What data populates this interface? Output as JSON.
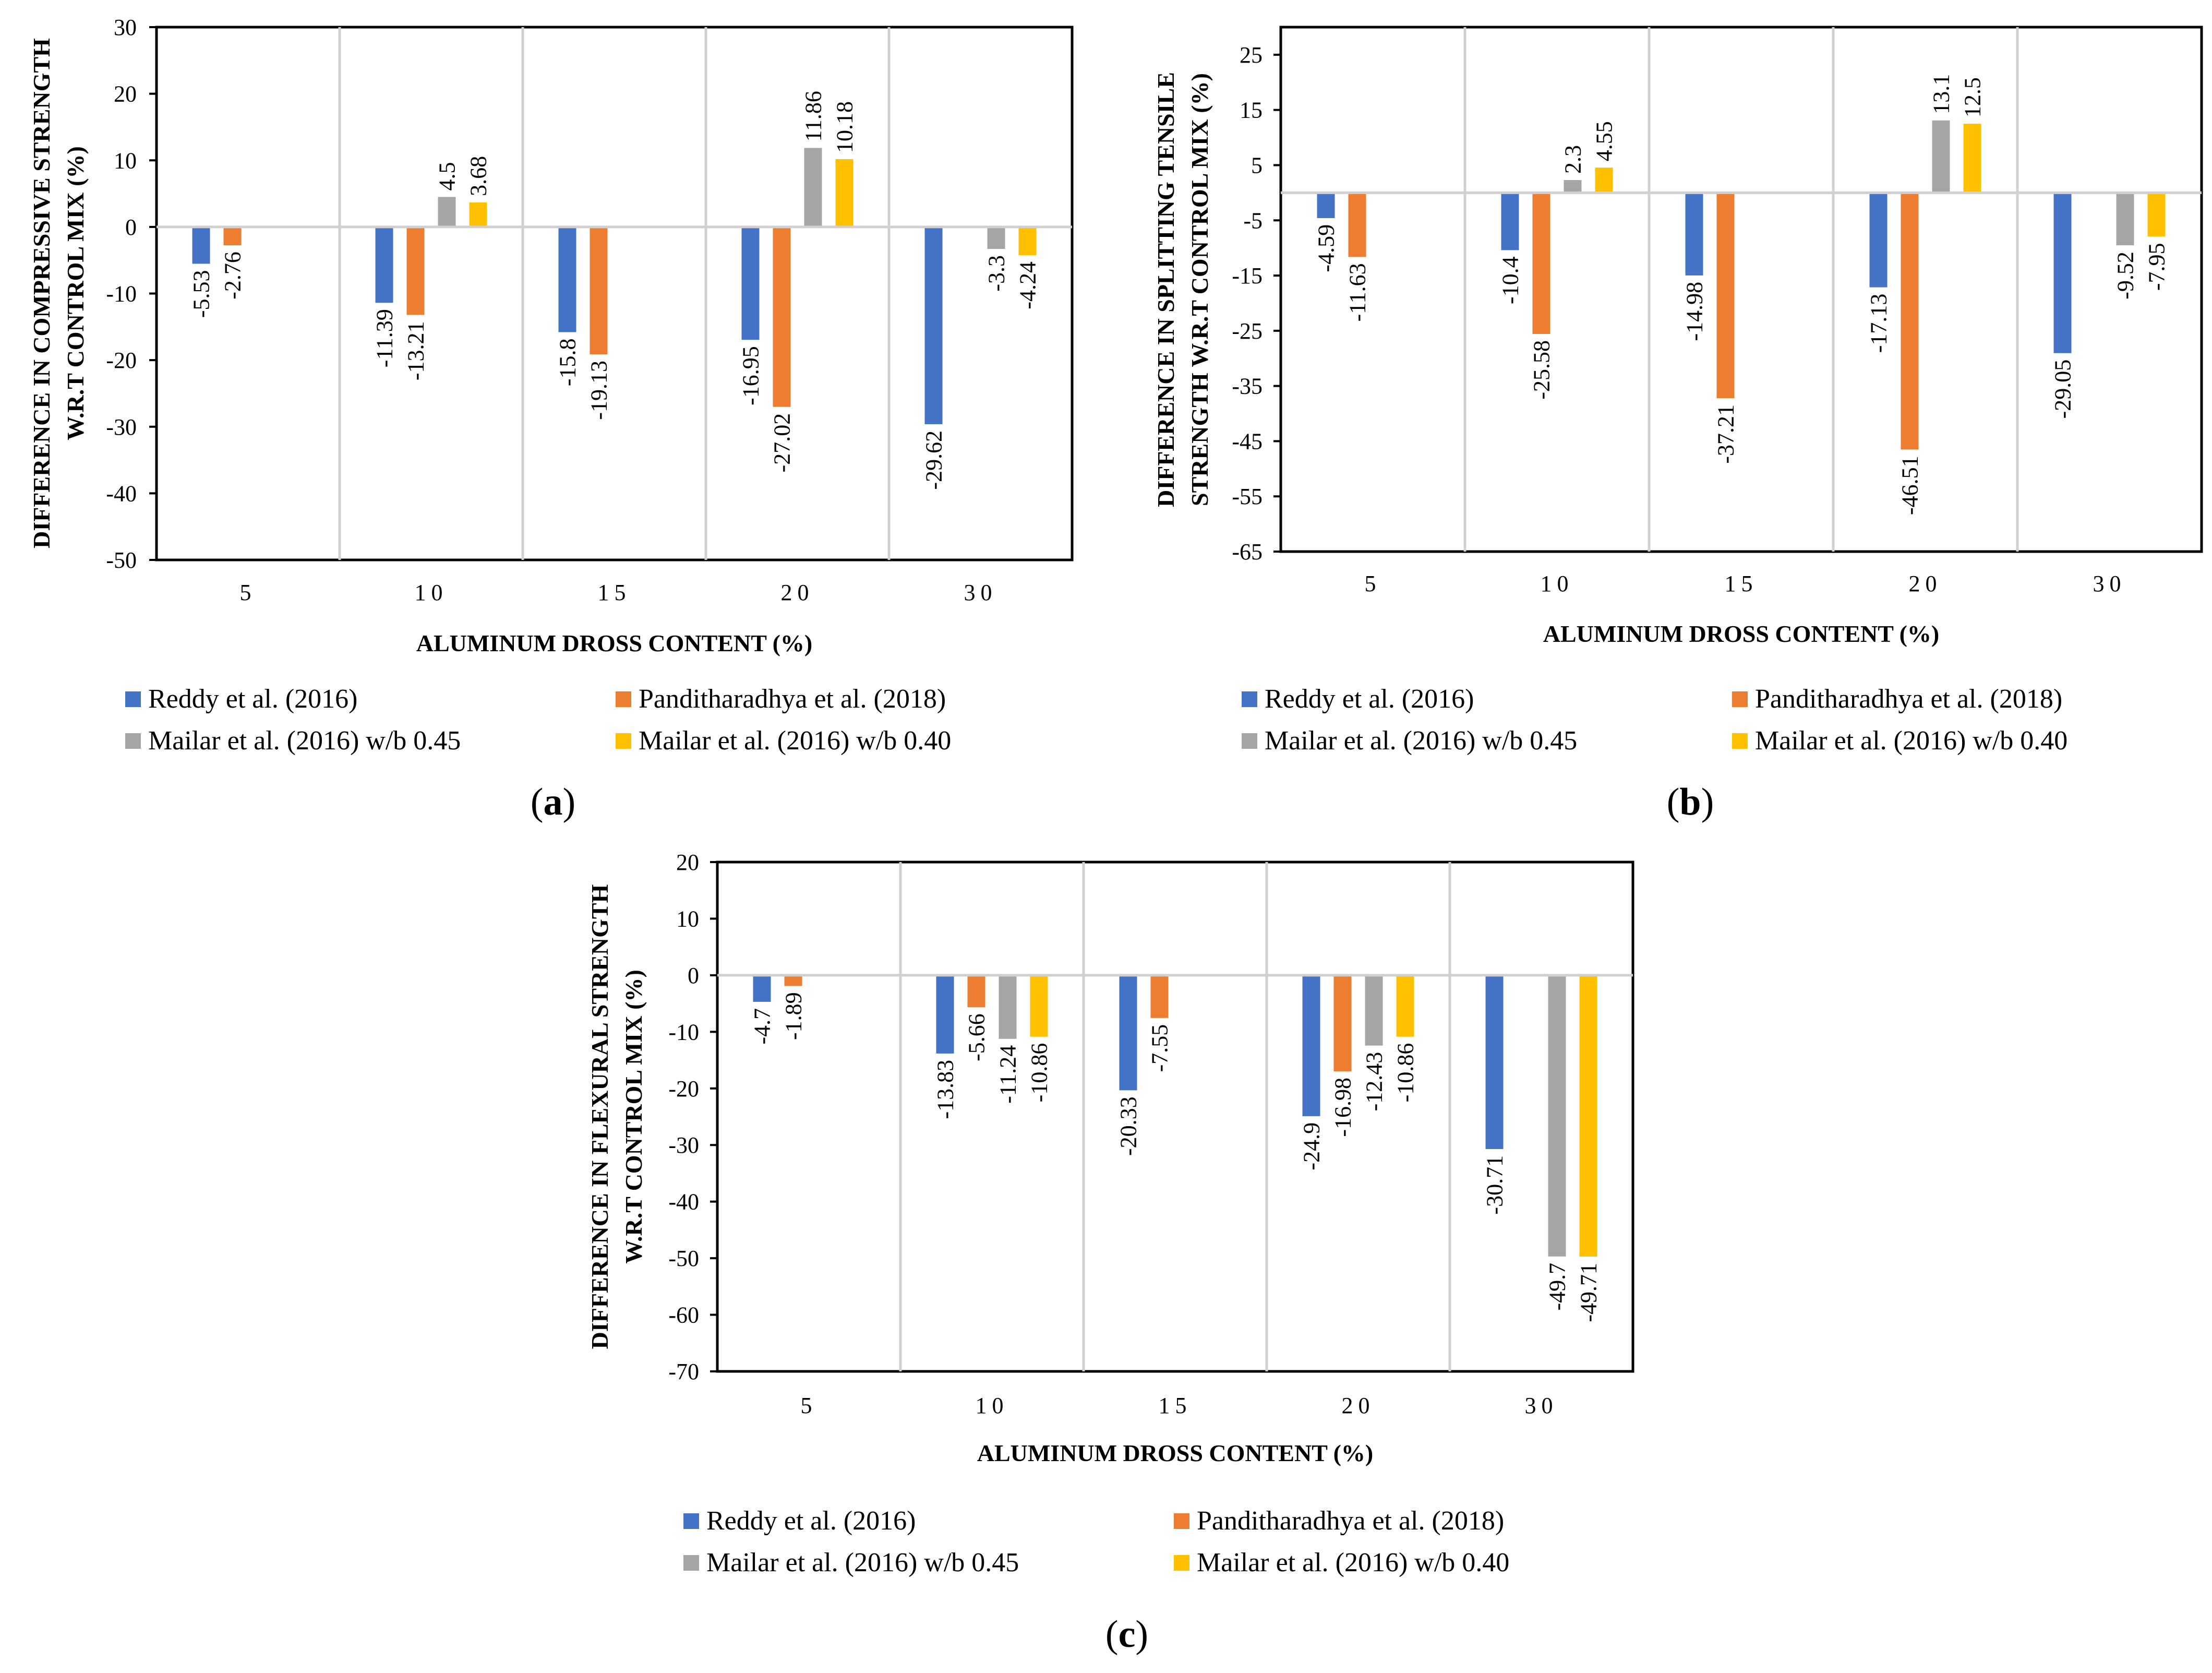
{
  "legend": {
    "series": [
      {
        "name": "Reddy et al. (2016)",
        "color": "#4472C4"
      },
      {
        "name": "Panditharadhya et al. (2018)",
        "color": "#ED7D31"
      },
      {
        "name": "Mailar et al. (2016) w/b 0.45",
        "color": "#A5A5A5"
      },
      {
        "name": "Mailar et al. (2016) w/b 0.40",
        "color": "#FFC000"
      }
    ]
  },
  "captions": {
    "a": {
      "open": "(",
      "letter": "a",
      "close": ")"
    },
    "b": {
      "open": "(",
      "letter": "b",
      "close": ")"
    },
    "c": {
      "open": "(",
      "letter": "c",
      "close": ")"
    }
  },
  "chart_data": [
    {
      "id": "a",
      "type": "bar",
      "title": "",
      "xlabel": "ALUMINUM DROSS CONTENT (%)",
      "ylabel": [
        "DIFFERENCE IN COMPRESSIVE STRENGTH",
        "W.R.T CONTROL MIX (%)"
      ],
      "categories": [
        "5",
        "10",
        "15",
        "20",
        "30"
      ],
      "ylim": [
        -50,
        30
      ],
      "yticks": [
        30,
        20,
        10,
        0,
        -10,
        -20,
        -30,
        -40,
        -50
      ],
      "series": [
        {
          "name": "Reddy et al. (2016)",
          "values": [
            -5.53,
            -11.39,
            -15.8,
            -16.95,
            -29.62
          ]
        },
        {
          "name": "Panditharadhya et al. (2018)",
          "values": [
            -2.76,
            -13.21,
            -19.13,
            -27.02,
            null
          ]
        },
        {
          "name": "Mailar et al. (2016) w/b 0.45",
          "values": [
            null,
            4.5,
            null,
            11.86,
            -3.3
          ]
        },
        {
          "name": "Mailar et al. (2016) w/b 0.40",
          "values": [
            null,
            3.68,
            null,
            10.18,
            -4.24
          ]
        }
      ]
    },
    {
      "id": "b",
      "type": "bar",
      "title": "",
      "xlabel": "ALUMINUM DROSS CONTENT (%)",
      "ylabel": [
        "DIFFERENCE IN SPLITTING TENSILE",
        "STRENGTH W.R.T CONTROL MIX (%)"
      ],
      "categories": [
        "5",
        "10",
        "15",
        "20",
        "30"
      ],
      "ylim": [
        -65,
        30
      ],
      "yticks": [
        25,
        15,
        5,
        -5,
        -15,
        -25,
        -35,
        -45,
        -55,
        -65
      ],
      "series": [
        {
          "name": "Reddy et al. (2016)",
          "values": [
            -4.59,
            -10.4,
            -14.98,
            -17.13,
            -29.05
          ]
        },
        {
          "name": "Panditharadhya et al. (2018)",
          "values": [
            -11.63,
            -25.58,
            -37.21,
            -46.51,
            null
          ]
        },
        {
          "name": "Mailar et al. (2016) w/b 0.45",
          "values": [
            null,
            2.3,
            null,
            13.1,
            -9.52
          ]
        },
        {
          "name": "Mailar et al. (2016) w/b 0.40",
          "values": [
            null,
            4.55,
            null,
            12.5,
            -7.95
          ]
        }
      ]
    },
    {
      "id": "c",
      "type": "bar",
      "title": "",
      "xlabel": "ALUMINUM DROSS CONTENT (%)",
      "ylabel": [
        "DIFFERENCE IN FLEXURAL STRENGTH",
        "W.R.T CONTROL MIX (%)"
      ],
      "categories": [
        "5",
        "10",
        "15",
        "20",
        "30"
      ],
      "ylim": [
        -70,
        20
      ],
      "yticks": [
        20,
        10,
        0,
        -10,
        -20,
        -30,
        -40,
        -50,
        -60,
        -70
      ],
      "series": [
        {
          "name": "Reddy et al. (2016)",
          "values": [
            -4.7,
            -13.83,
            -20.33,
            -24.9,
            -30.71
          ]
        },
        {
          "name": "Panditharadhya et al. (2018)",
          "values": [
            -1.89,
            -5.66,
            -7.55,
            -16.98,
            null
          ]
        },
        {
          "name": "Mailar et al. (2016) w/b 0.45",
          "values": [
            null,
            -11.24,
            null,
            -12.43,
            -49.7
          ]
        },
        {
          "name": "Mailar et al. (2016) w/b 0.40",
          "values": [
            null,
            -10.86,
            null,
            -10.86,
            -49.71
          ]
        }
      ]
    }
  ]
}
